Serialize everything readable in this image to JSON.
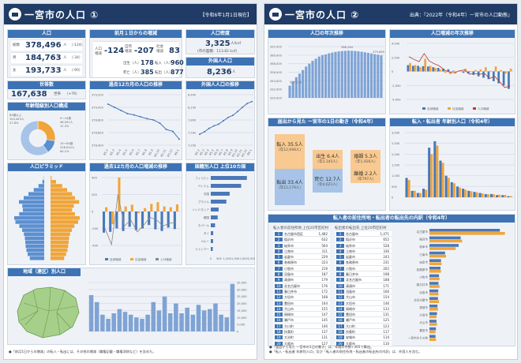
{
  "page1": {
    "title": "一宮市の人口 ①",
    "date_badge": "【令和6年1月1日現在】",
    "pop": {
      "header": "人口",
      "total_label": "総数",
      "total": "378,496",
      "unit": "人",
      "total_diff": "（-124）",
      "male_label": "男",
      "male": "184,763",
      "male_diff": "（-34）",
      "female_label": "女",
      "female": "193,733",
      "female_diff": "（-90）"
    },
    "change": {
      "header": "前月１日からの増減",
      "total_label": "人口増減",
      "total": "-124",
      "natural_label": "自然増減",
      "natural": "-207",
      "social_label": "社会増減",
      "social": "83",
      "births_label": "出生（人）",
      "births": "178",
      "deaths_label": "死亡（人）",
      "deaths": "385",
      "in_label": "転入（人）",
      "in": "960",
      "out_label": "転出（人）",
      "out": "877"
    },
    "density": {
      "header": "人口密度",
      "value": "3,325",
      "unit": "人/k㎡",
      "area": "(市の面積：113.82 k㎡)"
    },
    "foreign": {
      "header": "外国人人口",
      "value": "8,236",
      "unit": "人"
    },
    "households": {
      "header": "世帯数",
      "value": "167,638",
      "unit": "世帯",
      "diff": "（+76）"
    },
    "age_groups": {
      "header": "年齢階級別人口構成",
      "legend": [
        "0～14歳",
        "15～64歳",
        "65歳以上"
      ],
      "labels": [
        "65歳以上 104,443人 27.6%",
        "0～14歳 46,591人 12.3%",
        "15～64歳 228,020人 60.1%"
      ]
    },
    "trend": {
      "header": "過去12カ月の人口の推移"
    },
    "foreign_trend": {
      "header": "外国人人口の推移"
    },
    "pyramid": {
      "header": "人口ピラミッド"
    },
    "monthly_change": {
      "header": "過去12カ月の人口増減の推移",
      "legend": [
        "自然増減",
        "社会増減",
        "人口増減"
      ]
    },
    "nationality": {
      "header": "国籍別人口 上位10カ国"
    },
    "district": {
      "header": "地域（連区）別人口"
    },
    "note": "●「前月1日からの増減」の転入・転出には、その他の増減（職権記載・職権消除など）を含めた。"
  },
  "page2": {
    "title": "一宮市の人口 ②",
    "source": "出典：『2022年（令和4年）一宮市の人口動態』",
    "yearly": {
      "header": "人口の年次推移",
      "peak": "386,264",
      "last": "379,665",
      "first": "337,218"
    },
    "yearly_change": {
      "header": "人口増減の年次推移",
      "legend": [
        "自然増減",
        "社会増減",
        "人口増減"
      ]
    },
    "daily": {
      "header": "届出から見た 一宮市の1日の動き（令和4年）",
      "in": "転入 35.5人",
      "in_year": "（年12,948人）",
      "birth": "出生 6.4人",
      "birth_year": "（年2,345人）",
      "marriage": "婚姻 5.3人",
      "marriage_year": "（年1,926人）",
      "out": "転出 33.4人",
      "out_year": "（年12,179人）",
      "death": "死亡 12.7人",
      "death_year": "（年4,621人）",
      "divorce": "離婚 2.2人",
      "divorce_year": "（年797人）"
    },
    "age_move": {
      "header": "転入・転出者 年齢別人口（令和4年）"
    },
    "origin": {
      "header": "転入者の前住所地・転出者の転出先の内訳（令和4年）"
    },
    "table_in_title": "転入者の前住所地 上位20市区町村",
    "table_out_title": "転出者の転出先 上位20市区町村",
    "note1": "●「届出から見た 一宮市の1日の動き」は、年間の件数÷365で算出。",
    "note2": "●「転入・転出者 年齢別人口」及び「転入者の前住所地・転出者の転出先の内訳」は、外国人を含む。"
  },
  "chart_data": [
    {
      "type": "pie",
      "title": "年齢階級別人口構成",
      "categories": [
        "65歳以上",
        "0～14歳",
        "15～64歳"
      ],
      "values": [
        27.6,
        12.3,
        60.1
      ],
      "colors": [
        "#f0a53a",
        "#5b8fd0",
        "#a7c4e8"
      ]
    },
    {
      "type": "line",
      "title": "過去12カ月の人口の推移",
      "categories": [
        "R5.2",
        "R5.3",
        "R5.4",
        "R5.5",
        "R5.6",
        "R5.7",
        "R5.8",
        "R5.9",
        "R5.10",
        "R5.11",
        "R5.12",
        "R6.1"
      ],
      "values": [
        379050,
        379000,
        378950,
        378900,
        378880,
        378850,
        378820,
        378800,
        378750,
        378650,
        378620,
        378496
      ],
      "ylim": [
        378400,
        379200
      ],
      "color": "#4a78b8"
    },
    {
      "type": "line",
      "title": "外国人人口の推移",
      "categories": [
        "R5.2",
        "R5.3",
        "R5.4",
        "R5.5",
        "R5.6",
        "R5.7",
        "R5.8",
        "R5.9",
        "R5.10",
        "R5.11",
        "R5.12",
        "R6.1"
      ],
      "values": [
        7460,
        7520,
        7600,
        7660,
        7700,
        7780,
        7860,
        7910,
        8000,
        8100,
        8190,
        8236
      ],
      "ylim": [
        7200,
        8400
      ],
      "color": "#4a78b8"
    },
    {
      "type": "bar",
      "title": "過去12カ月の人口増減の推移",
      "series": [
        {
          "name": "自然増減",
          "values": [
            -250,
            -240,
            -200,
            -230,
            -180,
            -220,
            -200,
            -160,
            -210,
            -230,
            -190,
            -207
          ]
        },
        {
          "name": "社会増減",
          "values": [
            50,
            -150,
            400,
            60,
            80,
            -20,
            40,
            90,
            110,
            60,
            50,
            83
          ]
        }
      ],
      "line": [
        -200,
        -390,
        200,
        -170,
        -100,
        -240,
        -160,
        -70,
        -100,
        -170,
        -140,
        -124
      ],
      "ylim": [
        -400,
        400
      ]
    },
    {
      "type": "bar",
      "title": "国籍別人口 上位10カ国",
      "categories": [
        "フィリピン",
        "ベトナム",
        "中国",
        "ブラジル",
        "インドネシア",
        "韓国",
        "ネパール",
        "タイ",
        "ペルー",
        "ミャンマー"
      ],
      "values": [
        2200,
        1850,
        1150,
        950,
        480,
        420,
        260,
        150,
        140,
        120
      ],
      "xlim": [
        0,
        2500
      ]
    },
    {
      "type": "bar",
      "title": "地域（連区）別人口",
      "values": [
        26000,
        21000,
        12000,
        9000,
        13000,
        16000,
        14000,
        12000,
        10000,
        9000,
        12000,
        21000,
        15000,
        25000,
        13000,
        20000,
        13000,
        17000,
        12000,
        19000,
        15000,
        16000,
        20000,
        12000,
        10000,
        34000
      ],
      "ylim": [
        0,
        35000
      ]
    },
    {
      "type": "bar",
      "title": "人口ピラミッド",
      "male": [
        7300,
        8400,
        9000,
        9400,
        9600,
        9800,
        10300,
        11200,
        12600,
        14600,
        15200,
        12700,
        10800,
        11100,
        12800,
        10400,
        8000,
        5300,
        2900,
        900,
        100
      ],
      "female": [
        6900,
        7900,
        8600,
        8900,
        9200,
        9400,
        9900,
        10800,
        12100,
        14000,
        14800,
        12400,
        10900,
        11800,
        14500,
        12400,
        10900,
        8400,
        5900,
        2800,
        500
      ]
    },
    {
      "type": "bar",
      "title": "人口の年次推移",
      "values": [
        337218,
        343000,
        349000,
        354000,
        359000,
        364000,
        368000,
        372000,
        375000,
        378000,
        380000,
        381000,
        382500,
        383500,
        384500,
        385200,
        385700,
        386000,
        386264,
        386100,
        385800,
        385300,
        384700,
        384000,
        383200,
        382300,
        381400,
        380500,
        379665
      ],
      "ylim": [
        320000,
        392000
      ]
    },
    {
      "type": "bar",
      "title": "人口増減の年次推移",
      "series": [
        {
          "name": "自然増減",
          "values": [
            900,
            800,
            800,
            750,
            700,
            600,
            500,
            400,
            300,
            100,
            0,
            -200,
            -300,
            -500,
            -700,
            -900,
            -1100,
            -1400,
            -1700,
            -2000,
            -2500
          ]
        },
        {
          "name": "社会増減",
          "values": [
            1200,
            900,
            600,
            1800,
            800,
            500,
            300,
            -200,
            -400,
            -300,
            100,
            400,
            -100,
            200,
            300,
            600,
            100,
            700,
            200,
            -300,
            400
          ]
        }
      ],
      "line": [
        2100,
        1700,
        1400,
        2550,
        1500,
        1100,
        800,
        200,
        -100,
        -200,
        100,
        200,
        -400,
        -300,
        -400,
        -300,
        -1000,
        -700,
        -1500,
        -2300,
        -2100
      ],
      "ylim": [
        -4000,
        4000
      ]
    },
    {
      "type": "bar",
      "title": "転入・転出者 年齢別人口",
      "series": [
        {
          "name": "転入",
          "values": [
            900,
            300,
            200,
            400,
            2300,
            2600,
            1700,
            1000,
            700,
            500,
            400,
            300,
            250,
            200,
            150,
            150,
            100,
            100,
            50
          ]
        },
        {
          "name": "転出",
          "values": [
            800,
            300,
            200,
            350,
            2000,
            2400,
            1600,
            900,
            650,
            450,
            350,
            280,
            230,
            180,
            140,
            140,
            120,
            110,
            60
          ]
        }
      ],
      "ylim": [
        0,
        3000
      ]
    },
    {
      "type": "bar",
      "title": "転入者の前住所地・転出者の転出先の内訳",
      "categories": [
        "名古屋市",
        "稲沢市",
        "岐阜市",
        "江南市",
        "岩倉市",
        "各務原市",
        "小牧市",
        "春日井市",
        "羽島市",
        "北名古屋市",
        "清須市",
        "大垣市",
        "犬山市",
        "豊田市",
        "一宮市外その他"
      ],
      "in": [
        1400,
        620,
        580,
        310,
        230,
        220,
        190,
        180,
        175,
        170,
        160,
        150,
        140,
        130,
        120
      ],
      "out": [
        1500,
        650,
        520,
        330,
        240,
        230,
        200,
        200,
        180,
        190,
        170,
        140,
        150,
        120,
        130
      ],
      "xlim": [
        0,
        1600
      ]
    }
  ],
  "tables": {
    "in": [
      [
        "1",
        "名古屋市西区",
        "1,482"
      ],
      [
        "2",
        "稲沢市",
        "632"
      ],
      [
        "3",
        "岐阜市",
        "564"
      ],
      [
        "4",
        "江南市",
        "311"
      ],
      [
        "5",
        "岩倉市",
        "229"
      ],
      [
        "6",
        "各務原市",
        "223"
      ],
      [
        "7",
        "小牧市",
        "219"
      ],
      [
        "8",
        "羽島市",
        "187"
      ],
      [
        "9",
        "清須市",
        "179"
      ],
      [
        "10",
        "北名古屋市",
        "176"
      ],
      [
        "11",
        "春日井市",
        "172"
      ],
      [
        "12",
        "大垣市",
        "168"
      ],
      [
        "13",
        "豊田市",
        "164"
      ],
      [
        "14",
        "犬山市",
        "155"
      ],
      [
        "15",
        "岡崎市",
        "147"
      ],
      [
        "16",
        "瀬戸市",
        "145"
      ],
      [
        "17",
        "大口町",
        "140"
      ],
      [
        "18",
        "扶桑町",
        "137"
      ],
      [
        "19",
        "大治町",
        "131"
      ],
      [
        "20",
        "大阪市",
        "127"
      ]
    ],
    "out": [
      [
        "1",
        "名古屋市",
        "1,471"
      ],
      [
        "2",
        "稲沢市",
        "652"
      ],
      [
        "3",
        "岐阜市",
        "528"
      ],
      [
        "4",
        "江南市",
        "336"
      ],
      [
        "5",
        "岩倉市",
        "243"
      ],
      [
        "6",
        "各務原市",
        "231"
      ],
      [
        "7",
        "小牧市",
        "202"
      ],
      [
        "8",
        "春日井市",
        "198"
      ],
      [
        "9",
        "北名古屋市",
        "188"
      ],
      [
        "10",
        "清須市",
        "171"
      ],
      [
        "11",
        "羽島市",
        "166"
      ],
      [
        "12",
        "犬山市",
        "154"
      ],
      [
        "13",
        "大垣市",
        "146"
      ],
      [
        "14",
        "岡崎市",
        "133"
      ],
      [
        "15",
        "豊田市",
        "131"
      ],
      [
        "16",
        "瀬戸市",
        "125"
      ],
      [
        "17",
        "大口町",
        "123"
      ],
      [
        "18",
        "扶桑町",
        "117"
      ],
      [
        "19",
        "安城市",
        "114"
      ],
      [
        "20",
        "大阪市",
        "110"
      ]
    ]
  }
}
